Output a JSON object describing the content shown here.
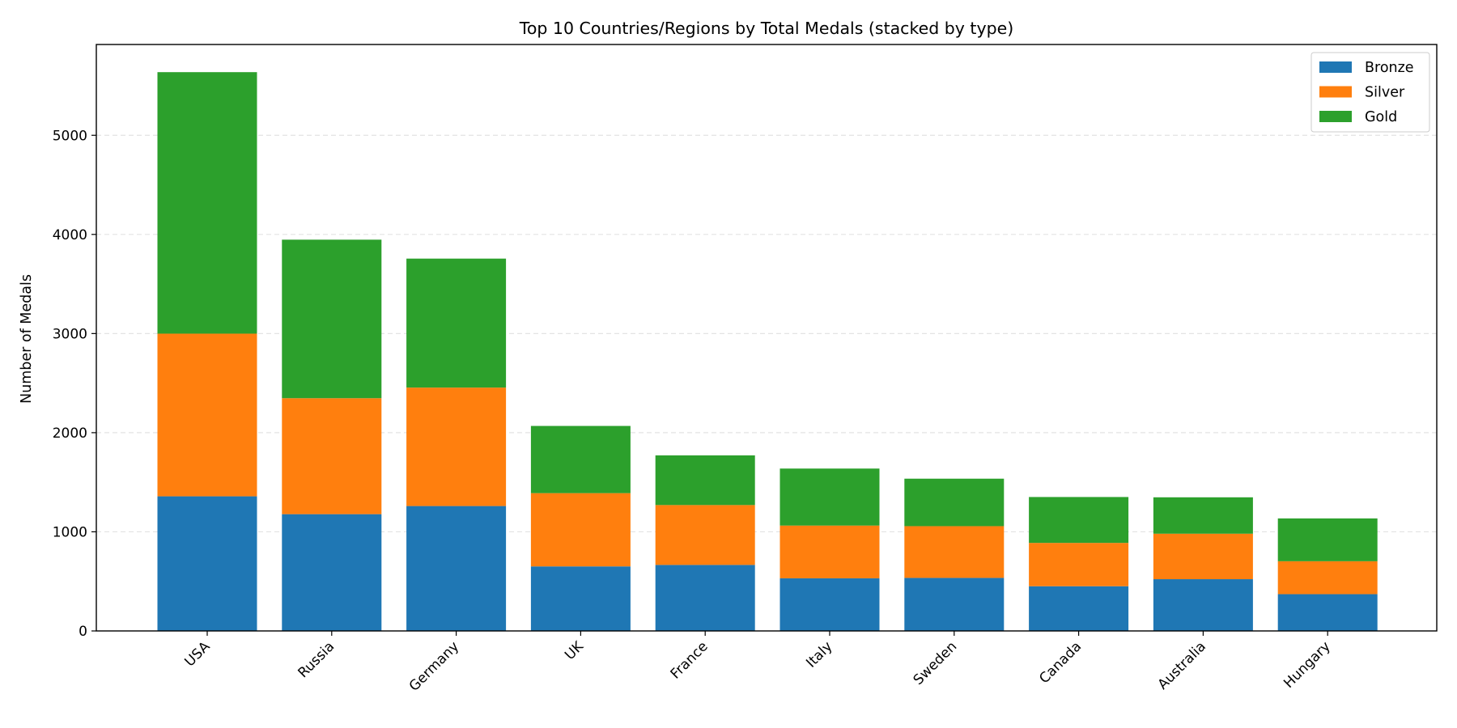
{
  "chart_data": {
    "type": "bar",
    "stacked": true,
    "title": "Top 10 Countries/Regions by Total Medals (stacked by type)",
    "xlabel": "",
    "ylabel": "Number of Medals",
    "categories": [
      "USA",
      "Russia",
      "Germany",
      "UK",
      "France",
      "Italy",
      "Sweden",
      "Canada",
      "Australia",
      "Hungary"
    ],
    "series": [
      {
        "name": "Bronze",
        "color": "#1f77b4",
        "values": [
          1358,
          1178,
          1260,
          651,
          666,
          531,
          535,
          451,
          522,
          371
        ]
      },
      {
        "name": "Silver",
        "color": "#ff7f0e",
        "values": [
          1641,
          1170,
          1195,
          739,
          604,
          532,
          522,
          437,
          459,
          332
        ]
      },
      {
        "name": "Gold",
        "color": "#2ca02c",
        "values": [
          2638,
          1599,
          1301,
          678,
          501,
          575,
          479,
          463,
          367,
          432
        ]
      }
    ],
    "ylim": [
      0,
      5916
    ],
    "yticks": [
      0,
      1000,
      2000,
      3000,
      4000,
      5000
    ],
    "grid": "y-dashed",
    "legend_position": "top-right"
  }
}
